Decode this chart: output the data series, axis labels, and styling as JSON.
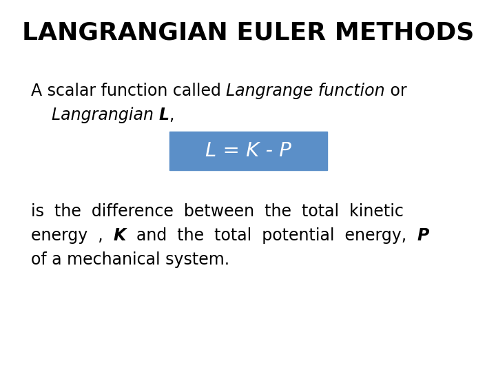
{
  "title": "LANGRANGIAN EULER METHODS",
  "title_fontsize": 26,
  "title_fontweight": "bold",
  "line1_normal": "A scalar function called ",
  "line1_italic": "Langrange function",
  "line1_end": " or",
  "line2_italic": "Langrangian ",
  "line2_bold_italic": "L",
  "line2_end": ",",
  "formula": "L = K - P",
  "formula_box_color": "#5b8fc8",
  "formula_text_color": "#ffffff",
  "body_line1": "is  the  difference  between  the  total  kinetic",
  "body_line2_pre": "energy  ,  ",
  "body_line2_bold": "K",
  "body_line2_mid": "  and  the  total  potential  energy,  ",
  "body_line2_bold2": "P",
  "body_line3": "of a mechanical system.",
  "text_fontsize": 17,
  "formula_fontsize": 21,
  "bg_color": "#ffffff",
  "text_color": "#000000"
}
